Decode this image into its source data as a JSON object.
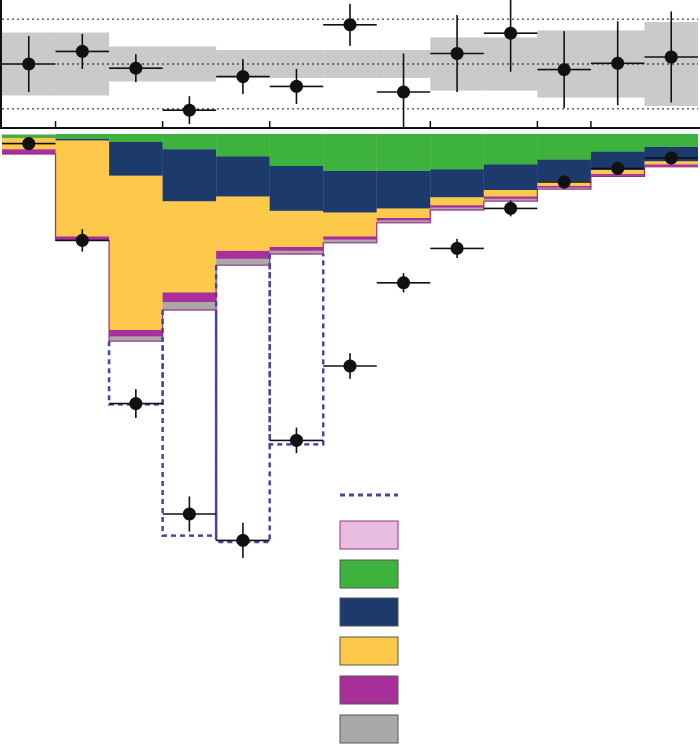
{
  "colors": {
    "background": "#ffffff",
    "pink_fill": "#e8bde0",
    "green": "#3db33d",
    "navy": "#1c3a6b",
    "yellow": "#fcc94a",
    "magenta": "#a9309b",
    "gray": "#a8aaa9",
    "outline": "#9b2c86",
    "dashed": "#4444a8",
    "band": "#c9cbca",
    "ink": "#111111"
  },
  "chart_data": [
    {
      "type": "scatter",
      "panel": "ratio",
      "x": [
        0.5,
        1.5,
        2.5,
        3.5,
        4.5,
        5.5,
        6.5,
        7.5,
        8.5,
        9.5,
        10.5,
        11.5,
        12.5
      ],
      "y": [
        0.0,
        0.18,
        -0.06,
        -0.66,
        -0.18,
        -0.32,
        0.56,
        -0.4,
        0.15,
        0.44,
        -0.08,
        0.01,
        0.1
      ],
      "yerr": [
        0.4,
        0.25,
        0.2,
        0.2,
        0.25,
        0.25,
        0.3,
        0.55,
        0.55,
        0.55,
        0.55,
        0.6,
        0.65
      ],
      "xerr": 0.5,
      "band": [
        0.45,
        0.45,
        0.25,
        0.25,
        0.2,
        0.2,
        0.2,
        0.2,
        0.38,
        0.38,
        0.48,
        0.48,
        0.6
      ],
      "reference_lines": [
        -0.64,
        0.0,
        0.64
      ],
      "xlim": [
        0,
        13
      ],
      "ylim": [
        -1.0,
        1.0
      ],
      "xticks": [
        1,
        3,
        5,
        8,
        10,
        11
      ],
      "grid": false
    },
    {
      "type": "bar",
      "panel": "main",
      "stacked": true,
      "inverted_y": true,
      "bin_edges": [
        0,
        1,
        2,
        3,
        4,
        5,
        6,
        7,
        8,
        9,
        10,
        11,
        12,
        13
      ],
      "ylim": [
        0,
        760
      ],
      "legend_placement": "bottom-center",
      "series": [
        {
          "color": "gray",
          "values": [
            0,
            0,
            6,
            10,
            8,
            4,
            4,
            3,
            3,
            3,
            2,
            1,
            1
          ]
        },
        {
          "color": "magenta",
          "values": [
            6,
            5,
            8,
            12,
            10,
            5,
            4,
            3,
            3,
            3,
            2,
            2,
            2
          ]
        },
        {
          "color": "yellow",
          "values": [
            14,
            120,
            193,
            114,
            68,
            45,
            30,
            12,
            10,
            8,
            6,
            5,
            4
          ]
        },
        {
          "color": "navy",
          "values": [
            0,
            2,
            42,
            65,
            50,
            56,
            52,
            47,
            35,
            32,
            27,
            23,
            18
          ]
        },
        {
          "color": "green",
          "values": [
            4,
            6,
            10,
            19,
            28,
            40,
            46,
            46,
            44,
            38,
            32,
            22,
            16
          ]
        }
      ],
      "total": [
        25,
        133,
        259,
        220,
        164,
        150,
        136,
        111,
        95,
        84,
        69,
        53,
        41
      ],
      "data_points": [
        12,
        133,
        337,
        475,
        508,
        383,
        290,
        186,
        143,
        93,
        60,
        43,
        30
      ],
      "data_errors": [
        8,
        14,
        18,
        22,
        22,
        16,
        16,
        12,
        12,
        10,
        9,
        7,
        6
      ],
      "dashed_expectation": [
        0,
        0,
        338,
        502,
        510,
        388,
        0,
        0,
        0,
        0,
        0,
        0,
        0
      ],
      "legend": [
        {
          "style": "dashed-line",
          "color": "dashed"
        },
        {
          "style": "box",
          "color": "pink_fill"
        },
        {
          "style": "box",
          "color": "green"
        },
        {
          "style": "box",
          "color": "navy"
        },
        {
          "style": "box",
          "color": "yellow"
        },
        {
          "style": "box",
          "color": "magenta"
        },
        {
          "style": "box",
          "color": "gray"
        }
      ]
    }
  ]
}
